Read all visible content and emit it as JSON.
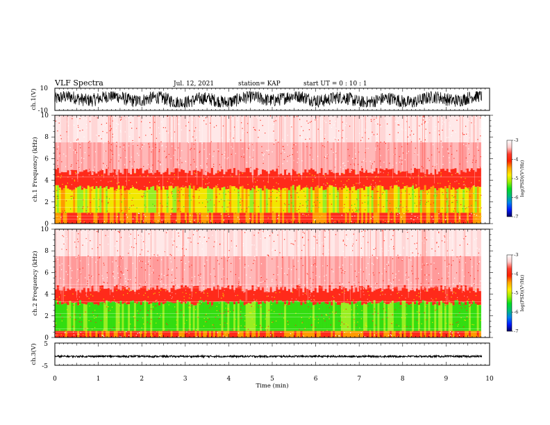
{
  "header": {
    "title": "VLF Spectra",
    "date": "Jul. 12, 2021",
    "station": "station= KAP",
    "start": "start UT = 0 : 10 : 1"
  },
  "colorbar": {
    "label": "log(PSD)(V²/Hz)",
    "ticks": [
      -3,
      -4,
      -5,
      -6,
      -7
    ],
    "colors": [
      "#ffffff",
      "#ffcccc",
      "#ff3a2a",
      "#ff2000",
      "#ffa800",
      "#ffee00",
      "#99ee00",
      "#00dd22",
      "#00bb77",
      "#0080ee",
      "#0018ff",
      "#000060"
    ]
  },
  "chart_data": [
    {
      "type": "line",
      "name": "ch1-waveform",
      "ylabel": "ch.1(V)",
      "ylim": [
        -10,
        10
      ],
      "y_tick_labels": [
        "10",
        "-10"
      ],
      "xlim": [
        0,
        10
      ],
      "approx_range": [
        -7,
        7
      ],
      "color": "#000000"
    },
    {
      "type": "heatmap",
      "name": "ch1-spectrogram",
      "ylabel": "ch.1 Frequency (kHz)",
      "xlim": [
        0,
        10
      ],
      "ylim": [
        0,
        10
      ],
      "y_ticks": [
        0,
        2,
        4,
        6,
        8,
        10
      ],
      "data_end_min": 9.8,
      "bands_kHz": [
        {
          "from": 0,
          "to": 1.0,
          "level": "red/yellow"
        },
        {
          "from": 1.0,
          "to": 3.3,
          "level": "yellow/green"
        },
        {
          "from": 3.3,
          "to": 4.8,
          "level": "red"
        },
        {
          "from": 4.8,
          "to": 10,
          "level": "pink/white"
        }
      ]
    },
    {
      "type": "heatmap",
      "name": "ch2-spectrogram",
      "ylabel": "ch.2 Frequency (kHz)",
      "xlim": [
        0,
        10
      ],
      "ylim": [
        0,
        10
      ],
      "y_ticks": [
        0,
        2,
        4,
        6,
        8,
        10
      ],
      "data_end_min": 9.8,
      "bands_kHz": [
        {
          "from": 0,
          "to": 0.6,
          "level": "red/yellow"
        },
        {
          "from": 0.6,
          "to": 3.2,
          "level": "green/yellow"
        },
        {
          "from": 3.2,
          "to": 4.5,
          "level": "red"
        },
        {
          "from": 4.5,
          "to": 10,
          "level": "pink/white"
        }
      ]
    },
    {
      "type": "line",
      "name": "ch3-waveform",
      "ylabel": "ch.3(V)",
      "ylim": [
        -5,
        5
      ],
      "y_tick_labels": [
        "5",
        "-5"
      ],
      "xlim": [
        0,
        10
      ],
      "x_ticks": [
        0,
        1,
        2,
        3,
        4,
        5,
        6,
        7,
        8,
        9,
        10
      ],
      "xlabel": "Time (min)",
      "approx_value": -1.0,
      "approx_amplitude": 0.4,
      "color": "#000000"
    }
  ]
}
